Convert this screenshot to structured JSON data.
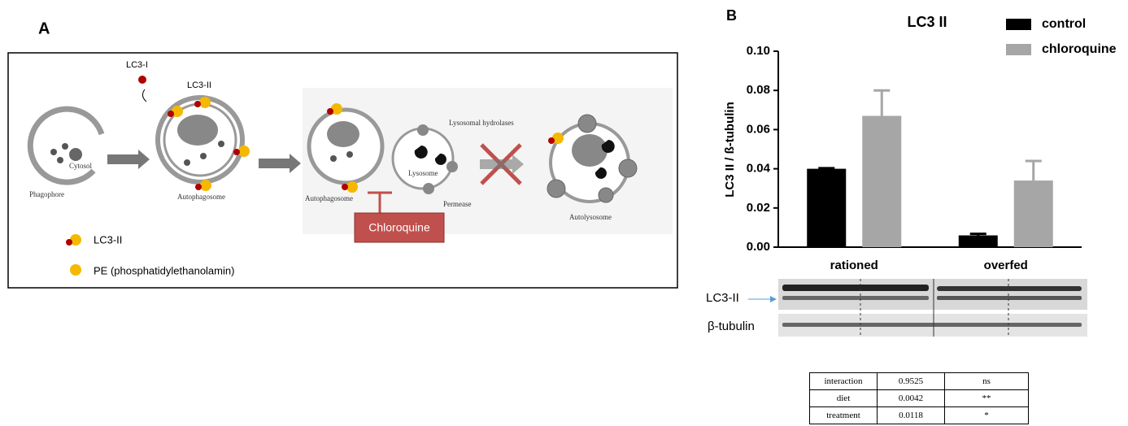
{
  "panel_a": {
    "label": "A",
    "lc3_i": "LC3-I",
    "lc3_ii": "LC3-II",
    "phagophore": "Phagophore",
    "cytosol": "Cytosol",
    "autophagosome_1": "Autophagosome",
    "autophagosome_2": "Autophagosome",
    "hydrolases": "Lysosomal hydrolases",
    "lysosome": "Lysosome",
    "permease": "Permease",
    "drug": "Chloroquine",
    "autolysosome": "Autolysosome",
    "legend": [
      "LC3-II",
      "PE (phosphatidylethanolamin)"
    ]
  },
  "panel_b_label": "B",
  "chart_data": {
    "type": "bar",
    "title": "LC3 II",
    "y_label": "LC3 II / ß-tubulin",
    "categories": [
      "rationed",
      "overfed"
    ],
    "series": [
      {
        "name": "control",
        "color": "#000000",
        "values": [
          0.04,
          0.006
        ],
        "errors": [
          0.0003,
          0.0008
        ]
      },
      {
        "name": "chloroquine",
        "color": "#a6a6a6",
        "values": [
          0.067,
          0.034
        ],
        "errors": [
          0.013,
          0.01
        ]
      }
    ],
    "ylim": [
      0,
      0.1
    ],
    "yticks": [
      {
        "value": 0,
        "label": "0.00"
      },
      0.02,
      0.04,
      0.06,
      0.08,
      {
        "value": 0.1,
        "label": "0.10"
      }
    ],
    "legend_position": "top right"
  },
  "blot": {
    "labels": [
      "LC3-II",
      "β-tubulin"
    ]
  },
  "table": {
    "rows": [
      [
        "interaction",
        "0.9525",
        "ns"
      ],
      [
        "diet",
        "0.0042",
        "**"
      ],
      [
        "treatment",
        "0.0118",
        "*"
      ]
    ]
  }
}
